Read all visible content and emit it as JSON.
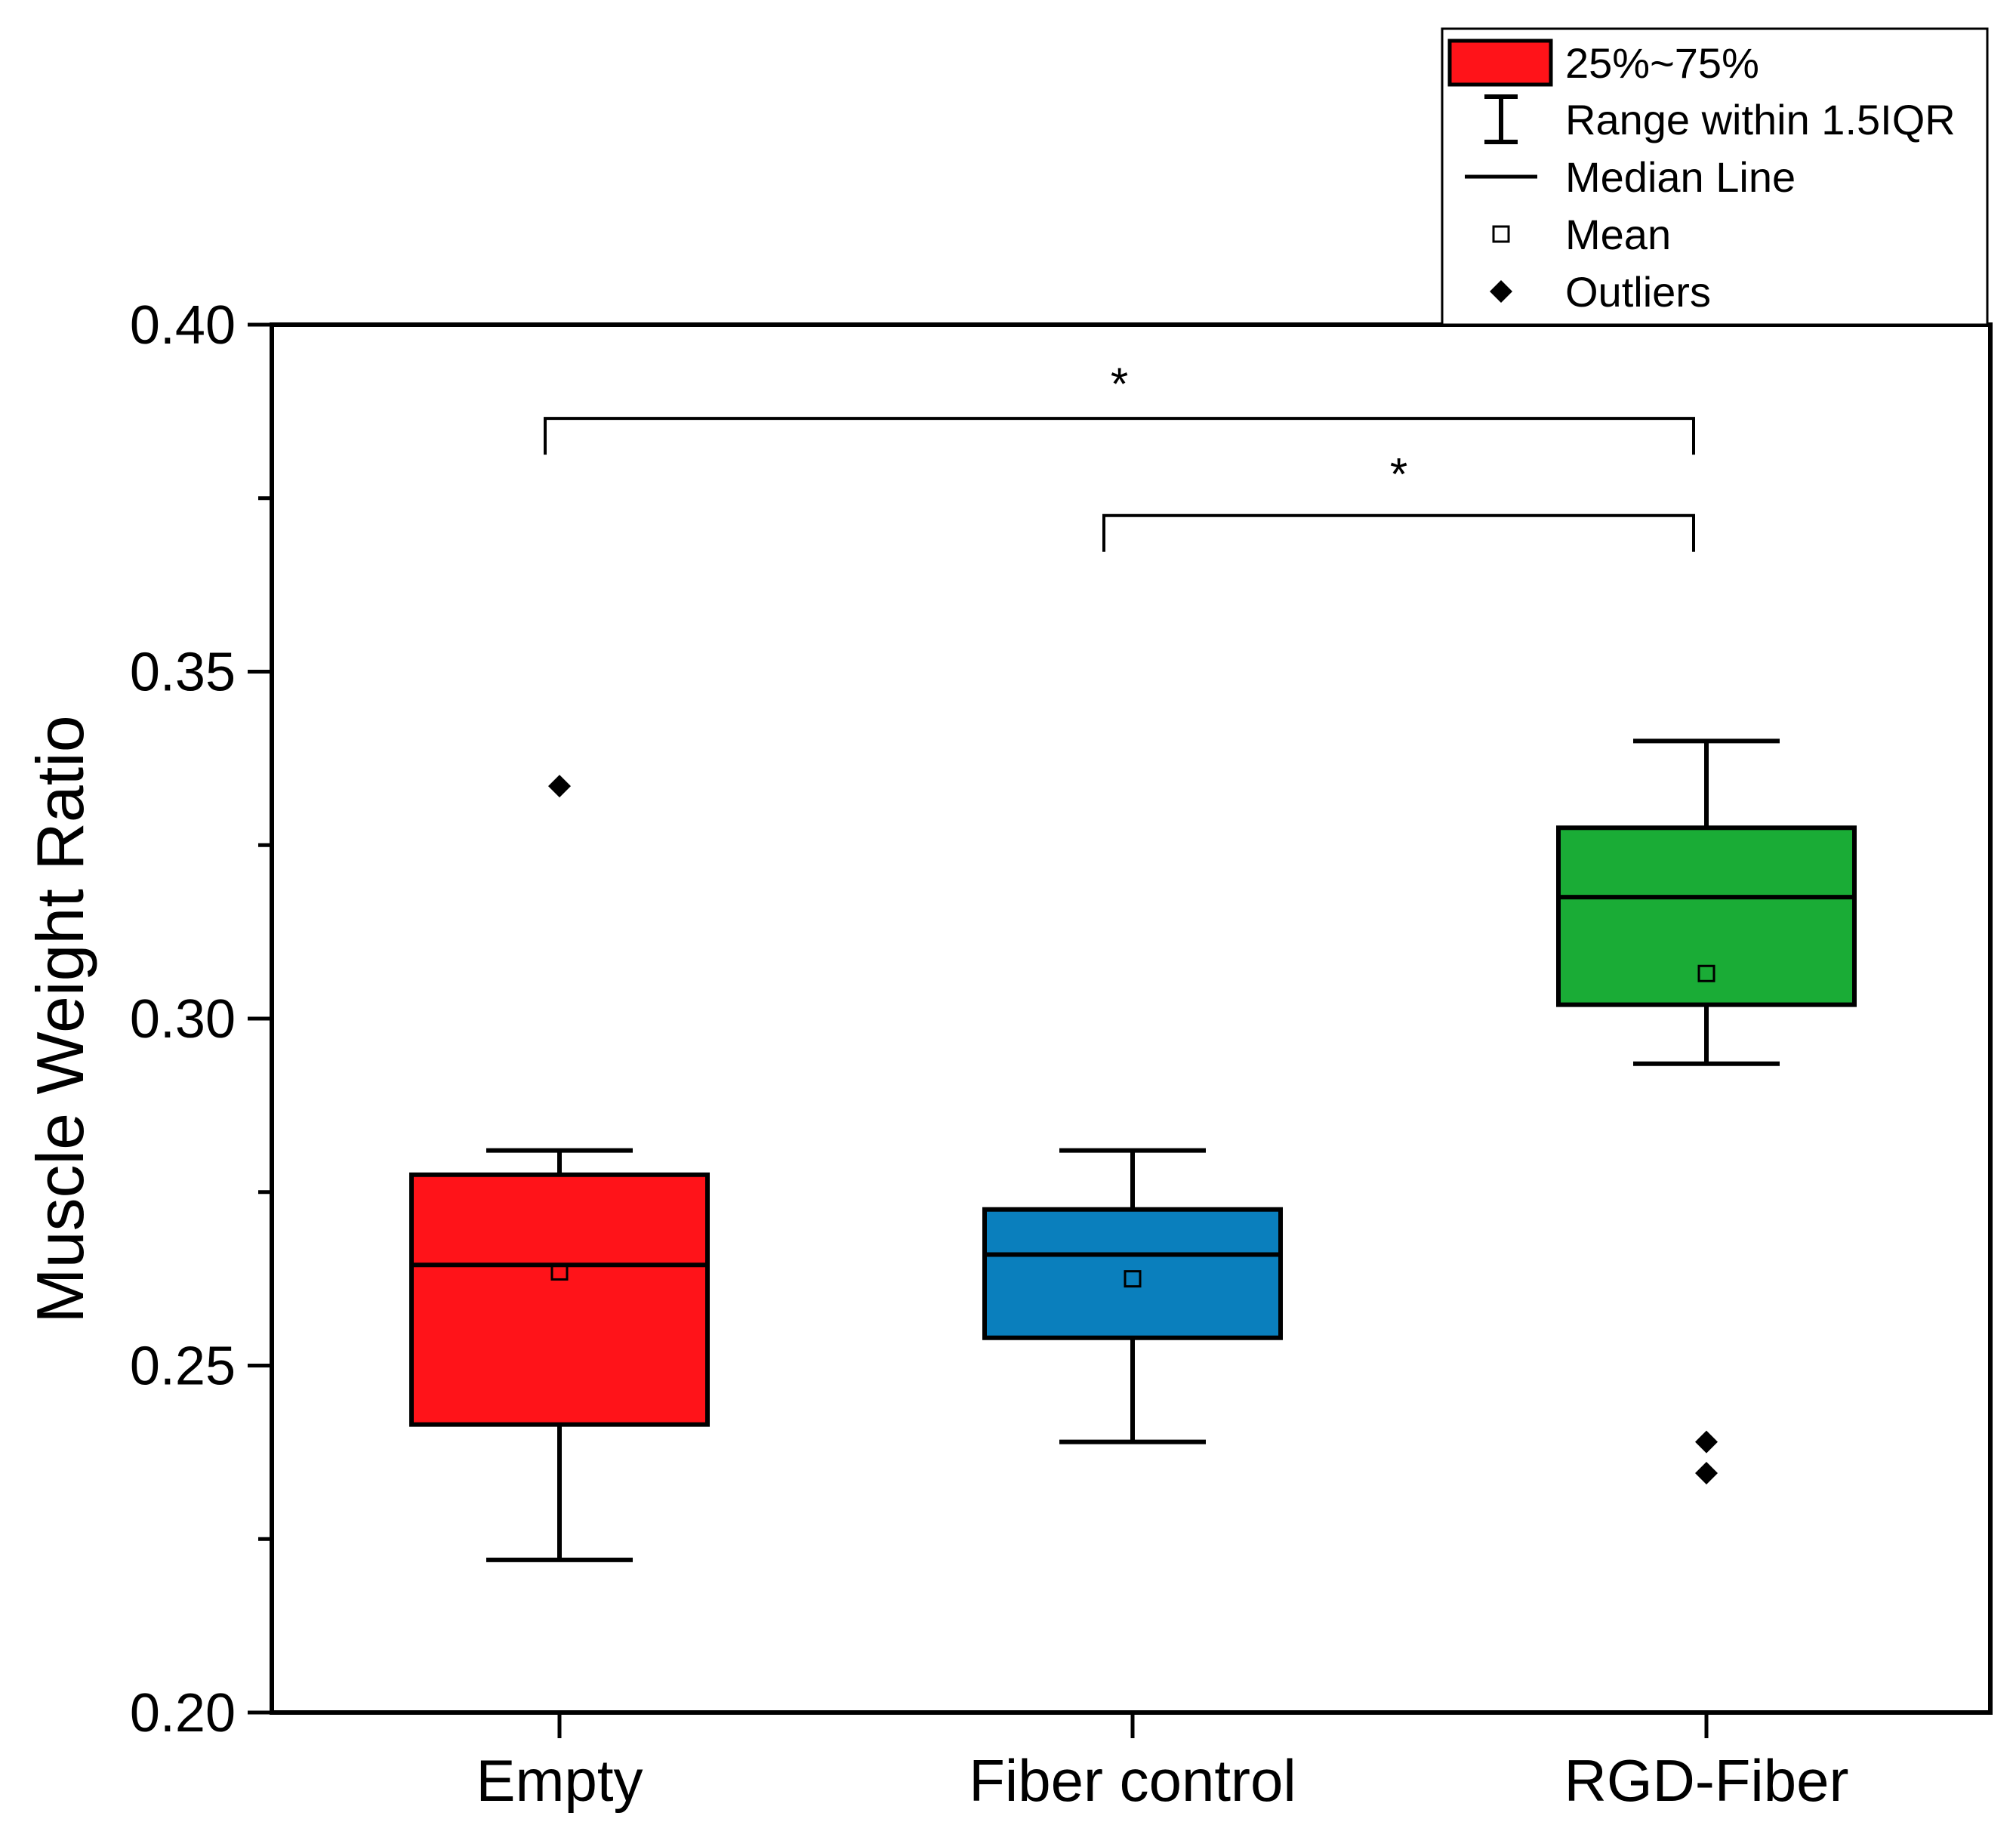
{
  "chart_data": {
    "type": "box",
    "title": "",
    "xlabel": "",
    "ylabel": "Muscle Weight Ratio",
    "ylim": [
      0.2,
      0.4
    ],
    "yticks": [
      0.2,
      0.25,
      0.3,
      0.35,
      0.4
    ],
    "ytick_labels": [
      "0.20",
      "0.25",
      "0.30",
      "0.35",
      "0.40"
    ],
    "minor_tick_step": 0.025,
    "categories": [
      "Empty",
      "Fiber control",
      "RGD-Fiber"
    ],
    "series": [
      {
        "name": "Empty",
        "color": "#ff1319",
        "whisker_low": 0.222,
        "q1": 0.2415,
        "median": 0.2645,
        "q3": 0.2775,
        "whisker_high": 0.281,
        "mean": 0.2635,
        "outliers": [
          0.3335
        ]
      },
      {
        "name": "Fiber control",
        "color": "#0a7fbd",
        "whisker_low": 0.239,
        "q1": 0.254,
        "median": 0.266,
        "q3": 0.2725,
        "whisker_high": 0.281,
        "mean": 0.2625,
        "outliers": []
      },
      {
        "name": "RGD-Fiber",
        "color": "#1aac36",
        "whisker_low": 0.2935,
        "q1": 0.302,
        "median": 0.3175,
        "q3": 0.3275,
        "whisker_high": 0.34,
        "mean": 0.3065,
        "outliers": [
          0.239,
          0.2345
        ]
      }
    ],
    "significance": [
      {
        "from": "Empty",
        "to": "RGD-Fiber",
        "label": "*"
      },
      {
        "from": "Fiber control",
        "to": "RGD-Fiber",
        "label": "*"
      }
    ],
    "legend": {
      "position": "top-right",
      "entries": [
        {
          "label": "25%~75%",
          "symbol": "box",
          "color": "#ff1319"
        },
        {
          "label": "Range within 1.5IQR",
          "symbol": "whisker"
        },
        {
          "label": "Median Line",
          "symbol": "line"
        },
        {
          "label": "Mean",
          "symbol": "open-square"
        },
        {
          "label": "Outliers",
          "symbol": "diamond"
        }
      ]
    }
  }
}
